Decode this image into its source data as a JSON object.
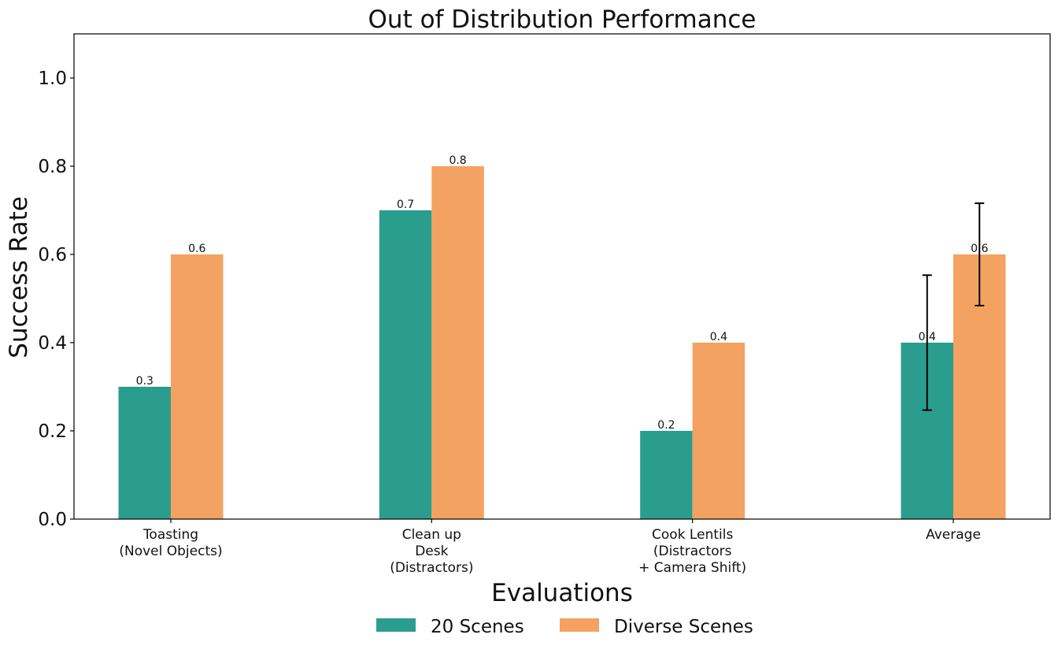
{
  "chart_data": {
    "type": "bar",
    "title": "Out of Distribution Performance",
    "xlabel": "Evaluations",
    "ylabel": "Success Rate",
    "ylim": [
      0,
      1.1
    ],
    "yticks": [
      "0.0",
      "0.2",
      "0.4",
      "0.6",
      "0.8",
      "1.0"
    ],
    "categories": [
      [
        "Toasting",
        "(Novel Objects)"
      ],
      [
        "Clean up",
        "Desk",
        "(Distractors)"
      ],
      [
        "Cook Lentils",
        "(Distractors",
        "+ Camera Shift)"
      ],
      [
        "Average"
      ]
    ],
    "series": [
      {
        "name": "20 Scenes",
        "color": "#2a9d8f",
        "values": [
          0.3,
          0.7,
          0.2,
          0.4
        ],
        "labels": [
          "0.3",
          "0.7",
          "0.2",
          "0.4"
        ],
        "error": [
          null,
          null,
          null,
          0.153
        ]
      },
      {
        "name": "Diverse Scenes",
        "color": "#f4a261",
        "values": [
          0.6,
          0.8,
          0.4,
          0.6
        ],
        "labels": [
          "0.6",
          "0.8",
          "0.4",
          "0.6"
        ],
        "error": [
          null,
          null,
          null,
          0.116
        ]
      }
    ],
    "grid": false,
    "legend_position": "bottom-center"
  }
}
